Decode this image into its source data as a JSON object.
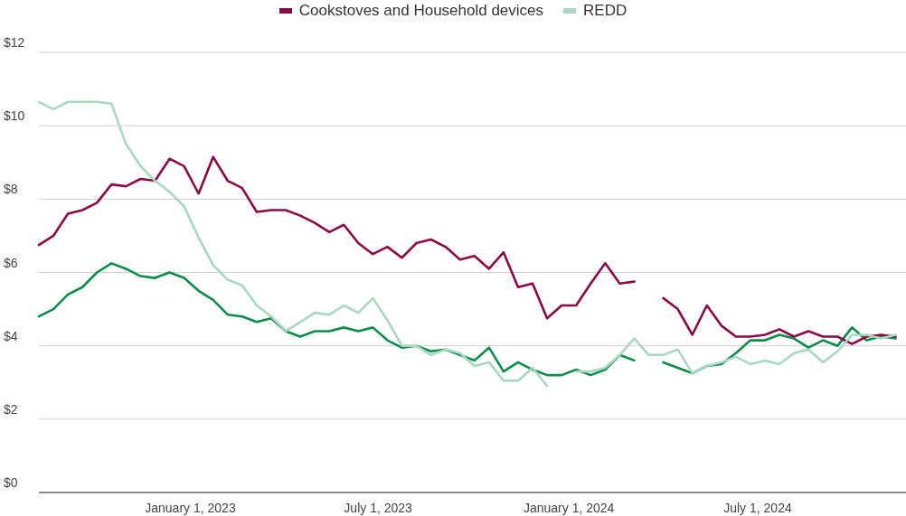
{
  "chart_data": {
    "type": "line",
    "x": [
      "2022-08-08",
      "2022-08-22",
      "2022-09-05",
      "2022-09-19",
      "2022-10-03",
      "2022-10-17",
      "2022-10-31",
      "2022-11-14",
      "2022-11-28",
      "2022-12-12",
      "2022-12-26",
      "2023-01-09",
      "2023-01-23",
      "2023-02-06",
      "2023-02-20",
      "2023-03-06",
      "2023-03-20",
      "2023-04-03",
      "2023-04-17",
      "2023-05-01",
      "2023-05-15",
      "2023-05-29",
      "2023-06-12",
      "2023-06-26",
      "2023-07-10",
      "2023-07-24",
      "2023-08-07",
      "2023-08-21",
      "2023-09-04",
      "2023-09-18",
      "2023-10-02",
      "2023-10-16",
      "2023-10-30",
      "2023-11-13",
      "2023-11-27",
      "2023-12-11",
      "2023-12-25",
      "2024-01-08",
      "2024-01-22",
      "2024-02-05",
      "2024-02-19",
      "2024-03-04",
      "2024-03-18",
      "2024-04-01",
      "2024-04-15",
      "2024-04-29",
      "2024-05-13",
      "2024-05-27",
      "2024-06-10",
      "2024-06-24",
      "2024-07-08",
      "2024-07-22",
      "2024-08-05",
      "2024-08-19",
      "2024-09-02",
      "2024-09-16",
      "2024-09-30",
      "2024-10-14",
      "2024-10-28",
      "2024-11-11"
    ],
    "series": [
      {
        "color": "#0b8c4a",
        "values": [
          4.8,
          5.0,
          5.4,
          5.6,
          6.0,
          6.25,
          6.1,
          5.9,
          5.85,
          6.0,
          5.85,
          5.5,
          5.25,
          4.85,
          4.8,
          4.65,
          4.75,
          4.4,
          4.25,
          4.4,
          4.4,
          4.5,
          4.4,
          4.5,
          4.15,
          3.95,
          4.0,
          3.85,
          3.9,
          3.75,
          3.6,
          3.95,
          3.3,
          3.55,
          3.35,
          3.2,
          3.2,
          3.35,
          3.2,
          3.35,
          3.75,
          3.6,
          null,
          3.55,
          3.4,
          3.25,
          3.45,
          3.5,
          3.8,
          4.15,
          4.15,
          4.3,
          4.2,
          3.95,
          4.15,
          4.0,
          4.5,
          4.15,
          4.25,
          4.2
        ]
      },
      {
        "name": "Cookstoves and Household devices",
        "color": "#8b0a46",
        "values": [
          6.75,
          7.0,
          7.6,
          7.7,
          7.9,
          8.4,
          8.35,
          8.55,
          8.5,
          9.1,
          8.9,
          8.15,
          9.15,
          8.5,
          8.3,
          7.65,
          7.7,
          7.7,
          7.55,
          7.35,
          7.1,
          7.3,
          6.8,
          6.5,
          6.7,
          6.4,
          6.8,
          6.9,
          6.7,
          6.35,
          6.45,
          6.1,
          6.55,
          5.6,
          5.7,
          4.75,
          5.1,
          5.1,
          5.7,
          6.25,
          5.7,
          5.75,
          null,
          5.3,
          5.0,
          4.3,
          5.1,
          4.55,
          4.25,
          4.25,
          4.3,
          4.45,
          4.25,
          4.4,
          4.25,
          4.25,
          4.05,
          4.25,
          4.3,
          4.25
        ]
      },
      {
        "name": "REDD",
        "color": "#a8d8c0",
        "values": [
          10.65,
          10.45,
          10.65,
          10.65,
          10.65,
          10.6,
          9.5,
          8.9,
          8.5,
          8.2,
          7.8,
          6.95,
          6.2,
          5.8,
          5.65,
          5.1,
          4.8,
          4.4,
          4.65,
          4.9,
          4.85,
          5.1,
          4.9,
          5.3,
          4.7,
          4.0,
          4.0,
          3.75,
          3.9,
          3.8,
          3.45,
          3.55,
          3.05,
          3.05,
          3.4,
          2.9,
          null,
          3.3,
          3.3,
          3.4,
          3.75,
          4.2,
          3.75,
          3.75,
          3.9,
          3.25,
          3.45,
          3.55,
          3.7,
          3.5,
          3.6,
          3.5,
          3.8,
          3.9,
          3.55,
          3.85,
          4.3,
          4.3,
          4.2,
          4.3
        ]
      }
    ],
    "xlim": [
      "2022-08-08",
      "2024-11-21"
    ],
    "xticks": [
      {
        "value": "2023-01-01",
        "label": "January 1, 2023"
      },
      {
        "value": "2023-07-01",
        "label": "July 1, 2023"
      },
      {
        "value": "2024-01-01",
        "label": "January 1, 2024"
      },
      {
        "value": "2024-07-01",
        "label": "July 1, 2024"
      }
    ],
    "ylim": [
      0,
      12
    ],
    "yticks": [
      {
        "value": 0,
        "label": "$0"
      },
      {
        "value": 2,
        "label": "$2"
      },
      {
        "value": 4,
        "label": "$4"
      },
      {
        "value": 6,
        "label": "$6"
      },
      {
        "value": 8,
        "label": "$8"
      },
      {
        "value": 10,
        "label": "$10"
      },
      {
        "value": 12,
        "label": "$12"
      }
    ],
    "grid": "y",
    "legend": "top",
    "marker": "none",
    "line_style": "solid"
  }
}
